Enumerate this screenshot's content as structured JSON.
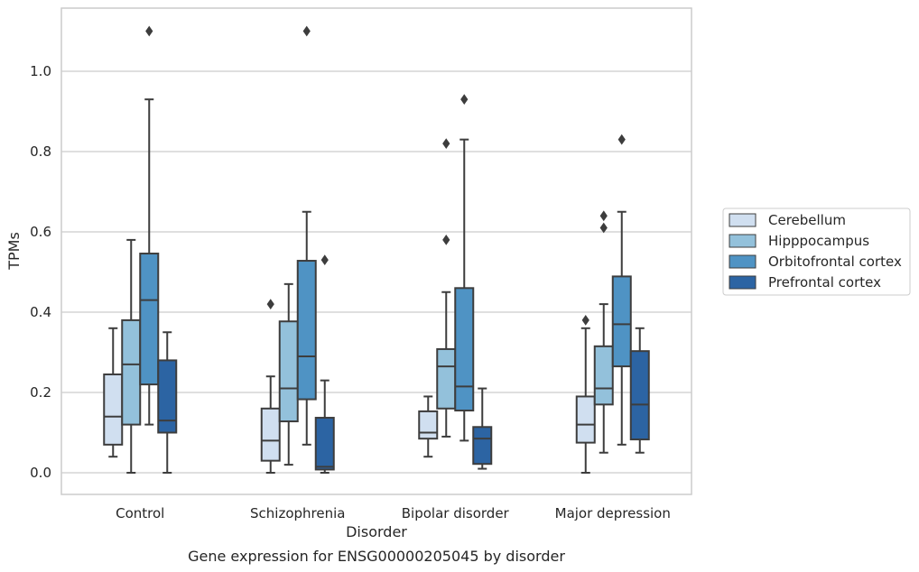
{
  "chart_data": {
    "type": "box",
    "title": "Gene expression for ENSG00000205045 by disorder",
    "xlabel": "Disorder",
    "ylabel": "TPMs",
    "ylim": [
      -0.055,
      1.165
    ],
    "yticks": [
      "0.0",
      "0.2",
      "0.4",
      "0.6",
      "0.8",
      "1.0"
    ],
    "grid": "horizontal",
    "legend_position": "right",
    "categories": [
      "Control",
      "Schizophrenia",
      "Bipolar disorder",
      "Major depression"
    ],
    "series": [
      {
        "name": "Cerebellum",
        "color": "#d0dff0",
        "boxes": [
          {
            "min": 0.04,
            "q1": 0.07,
            "median": 0.14,
            "q3": 0.245,
            "max": 0.36,
            "outliers": []
          },
          {
            "min": 0.0,
            "q1": 0.03,
            "median": 0.08,
            "q3": 0.16,
            "max": 0.24,
            "outliers": [
              0.42
            ]
          },
          {
            "min": 0.04,
            "q1": 0.085,
            "median": 0.1,
            "q3": 0.153,
            "max": 0.19,
            "outliers": []
          },
          {
            "min": 0.0,
            "q1": 0.075,
            "median": 0.12,
            "q3": 0.19,
            "max": 0.36,
            "outliers": [
              0.38
            ]
          }
        ]
      },
      {
        "name": "Hipppocampus",
        "color": "#93c1db",
        "boxes": [
          {
            "min": 0.0,
            "q1": 0.12,
            "median": 0.27,
            "q3": 0.38,
            "max": 0.58,
            "outliers": []
          },
          {
            "min": 0.02,
            "q1": 0.128,
            "median": 0.21,
            "q3": 0.377,
            "max": 0.47,
            "outliers": []
          },
          {
            "min": 0.09,
            "q1": 0.16,
            "median": 0.265,
            "q3": 0.308,
            "max": 0.45,
            "outliers": [
              0.58,
              0.82
            ]
          },
          {
            "min": 0.05,
            "q1": 0.17,
            "median": 0.21,
            "q3": 0.315,
            "max": 0.42,
            "outliers": [
              0.61,
              0.64
            ]
          }
        ]
      },
      {
        "name": "Orbitofrontal cortex",
        "color": "#4f93c4",
        "boxes": [
          {
            "min": 0.12,
            "q1": 0.22,
            "median": 0.43,
            "q3": 0.546,
            "max": 0.93,
            "outliers": [
              1.1
            ]
          },
          {
            "min": 0.07,
            "q1": 0.183,
            "median": 0.29,
            "q3": 0.528,
            "max": 0.65,
            "outliers": [
              1.1
            ]
          },
          {
            "min": 0.08,
            "q1": 0.155,
            "median": 0.215,
            "q3": 0.46,
            "max": 0.83,
            "outliers": [
              0.93
            ]
          },
          {
            "min": 0.07,
            "q1": 0.265,
            "median": 0.37,
            "q3": 0.489,
            "max": 0.65,
            "outliers": [
              0.83
            ]
          }
        ]
      },
      {
        "name": "Prefrontal cortex",
        "color": "#2c64a3",
        "boxes": [
          {
            "min": 0.0,
            "q1": 0.1,
            "median": 0.13,
            "q3": 0.28,
            "max": 0.35,
            "outliers": []
          },
          {
            "min": 0.0,
            "q1": 0.008,
            "median": 0.015,
            "q3": 0.137,
            "max": 0.23,
            "outliers": [
              0.53
            ]
          },
          {
            "min": 0.01,
            "q1": 0.022,
            "median": 0.085,
            "q3": 0.114,
            "max": 0.21,
            "outliers": []
          },
          {
            "min": 0.05,
            "q1": 0.083,
            "median": 0.17,
            "q3": 0.303,
            "max": 0.36,
            "outliers": []
          }
        ]
      }
    ]
  }
}
